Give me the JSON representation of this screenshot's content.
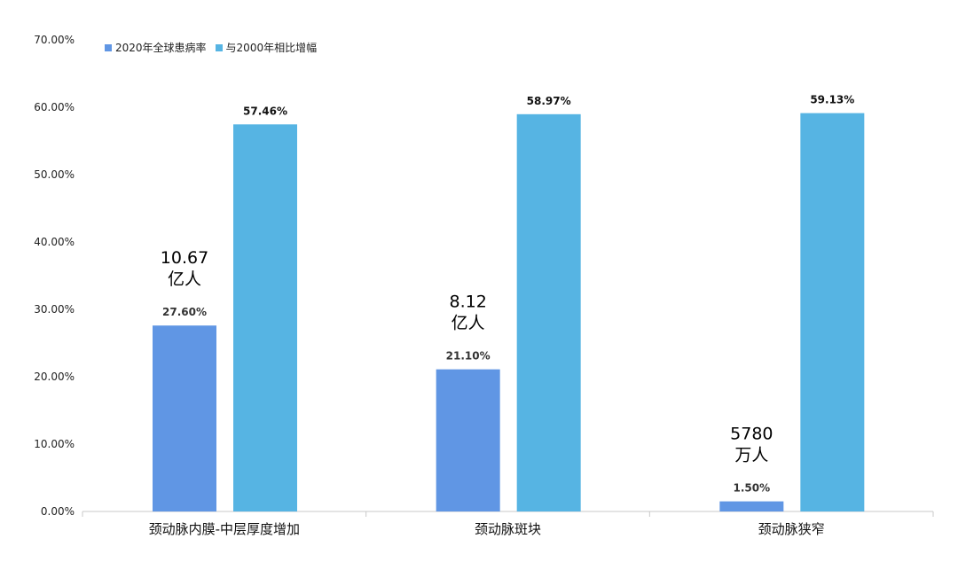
{
  "chart_data": {
    "type": "bar",
    "title": "",
    "xlabel": "",
    "ylabel": "",
    "ylim": [
      0,
      70
    ],
    "yticks": [
      0,
      10,
      20,
      30,
      40,
      50,
      60,
      70
    ],
    "ytick_labels": [
      "0.00%",
      "10.00%",
      "20.00%",
      "30.00%",
      "40.00%",
      "50.00%",
      "60.00%",
      "70.00%"
    ],
    "grid": false,
    "legend_position": "top-left",
    "categories": [
      "颈动脉内膜-中层厚度增加",
      "颈动脉斑块",
      "颈动脉狭窄"
    ],
    "series": [
      {
        "name": "2020年全球患病率",
        "color": "#6096E4",
        "values": [
          27.6,
          21.1,
          1.5
        ],
        "labels": [
          "27.60%",
          "21.10%",
          "1.50%"
        ]
      },
      {
        "name": "与2000年相比增幅",
        "color": "#56B4E3",
        "values": [
          57.46,
          58.97,
          59.13
        ],
        "labels": [
          "57.46%",
          "58.97%",
          "59.13%"
        ]
      }
    ],
    "annotations": [
      {
        "category_index": 0,
        "lines": [
          "10.67",
          "亿人"
        ]
      },
      {
        "category_index": 1,
        "lines": [
          "8.12",
          "亿人"
        ]
      },
      {
        "category_index": 2,
        "lines": [
          "5780",
          "万人"
        ]
      }
    ]
  }
}
